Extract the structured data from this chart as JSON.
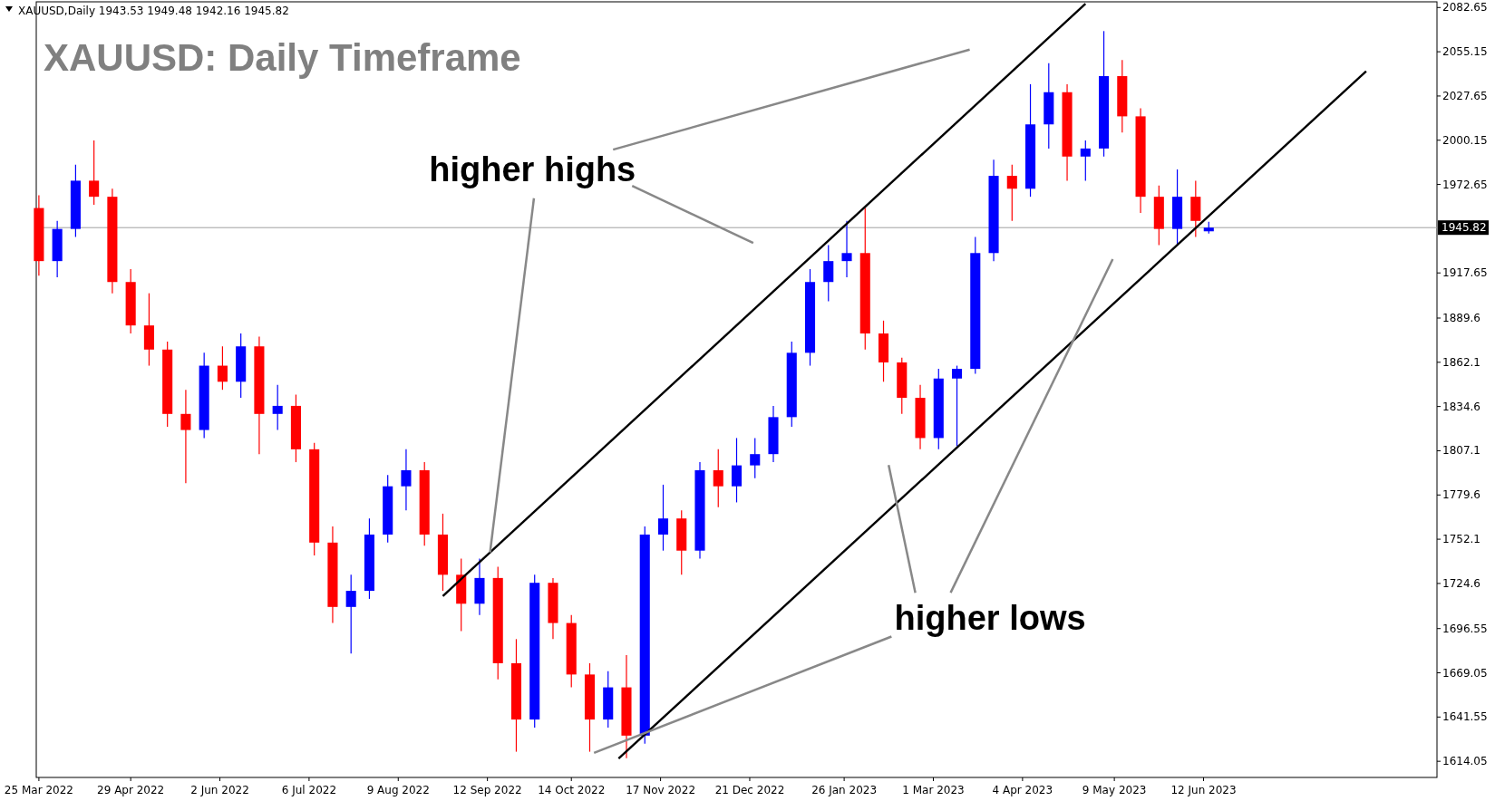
{
  "chart_data": {
    "type": "candlestick",
    "title": "XAUUSD: Daily Timeframe",
    "x": [
      "2022-03-25",
      "2022-04-01",
      "2022-04-08",
      "2022-04-15",
      "2022-04-22",
      "2022-04-29",
      "2022-05-06",
      "2022-05-13",
      "2022-05-20",
      "2022-05-27",
      "2022-06-03",
      "2022-06-10",
      "2022-06-17",
      "2022-06-24",
      "2022-07-01",
      "2022-07-08",
      "2022-07-15",
      "2022-07-22",
      "2022-07-29",
      "2022-08-05",
      "2022-08-12",
      "2022-08-19",
      "2022-08-26",
      "2022-09-02",
      "2022-09-09",
      "2022-09-16",
      "2022-09-23",
      "2022-09-30",
      "2022-10-07",
      "2022-10-14",
      "2022-10-21",
      "2022-10-28",
      "2022-11-04",
      "2022-11-11",
      "2022-11-18",
      "2022-11-25",
      "2022-12-02",
      "2022-12-09",
      "2022-12-16",
      "2022-12-23",
      "2022-12-30",
      "2023-01-06",
      "2023-01-13",
      "2023-01-20",
      "2023-01-27",
      "2023-02-03",
      "2023-02-10",
      "2023-02-17",
      "2023-02-24",
      "2023-03-03",
      "2023-03-10",
      "2023-03-17",
      "2023-03-24",
      "2023-03-31",
      "2023-04-07",
      "2023-04-14",
      "2023-04-21",
      "2023-04-28",
      "2023-05-05",
      "2023-05-12",
      "2023-05-19",
      "2023-05-26",
      "2023-06-02",
      "2023-06-09",
      "2023-06-14"
    ],
    "ohlc": [
      [
        1958,
        1966,
        1916,
        1925
      ],
      [
        1925,
        1950,
        1915,
        1945
      ],
      [
        1945,
        1985,
        1940,
        1975
      ],
      [
        1975,
        2000,
        1960,
        1965
      ],
      [
        1965,
        1970,
        1905,
        1912
      ],
      [
        1912,
        1920,
        1880,
        1885
      ],
      [
        1885,
        1905,
        1860,
        1870
      ],
      [
        1870,
        1875,
        1822,
        1830
      ],
      [
        1830,
        1845,
        1787,
        1820
      ],
      [
        1820,
        1868,
        1815,
        1860
      ],
      [
        1860,
        1872,
        1845,
        1850
      ],
      [
        1850,
        1880,
        1840,
        1872
      ],
      [
        1872,
        1878,
        1805,
        1830
      ],
      [
        1830,
        1848,
        1820,
        1835
      ],
      [
        1835,
        1842,
        1800,
        1808
      ],
      [
        1808,
        1812,
        1742,
        1750
      ],
      [
        1750,
        1760,
        1700,
        1710
      ],
      [
        1710,
        1730,
        1681,
        1720
      ],
      [
        1720,
        1765,
        1715,
        1755
      ],
      [
        1755,
        1792,
        1750,
        1785
      ],
      [
        1785,
        1808,
        1770,
        1795
      ],
      [
        1795,
        1800,
        1748,
        1755
      ],
      [
        1755,
        1768,
        1720,
        1730
      ],
      [
        1730,
        1740,
        1695,
        1712
      ],
      [
        1712,
        1740,
        1705,
        1728
      ],
      [
        1728,
        1735,
        1665,
        1675
      ],
      [
        1675,
        1690,
        1620,
        1640
      ],
      [
        1640,
        1730,
        1635,
        1725
      ],
      [
        1725,
        1728,
        1690,
        1700
      ],
      [
        1700,
        1705,
        1660,
        1668
      ],
      [
        1668,
        1675,
        1620,
        1640
      ],
      [
        1640,
        1670,
        1635,
        1660
      ],
      [
        1660,
        1680,
        1616,
        1630
      ],
      [
        1630,
        1760,
        1625,
        1755
      ],
      [
        1755,
        1786,
        1745,
        1765
      ],
      [
        1765,
        1770,
        1730,
        1745
      ],
      [
        1745,
        1800,
        1740,
        1795
      ],
      [
        1795,
        1808,
        1772,
        1785
      ],
      [
        1785,
        1815,
        1775,
        1798
      ],
      [
        1798,
        1815,
        1790,
        1805
      ],
      [
        1805,
        1835,
        1800,
        1828
      ],
      [
        1828,
        1875,
        1822,
        1868
      ],
      [
        1868,
        1920,
        1860,
        1912
      ],
      [
        1912,
        1935,
        1900,
        1925
      ],
      [
        1925,
        1950,
        1915,
        1930
      ],
      [
        1930,
        1958,
        1870,
        1880
      ],
      [
        1880,
        1888,
        1850,
        1862
      ],
      [
        1862,
        1865,
        1830,
        1840
      ],
      [
        1840,
        1848,
        1808,
        1815
      ],
      [
        1815,
        1858,
        1808,
        1852
      ],
      [
        1852,
        1860,
        1810,
        1858
      ],
      [
        1858,
        1940,
        1855,
        1930
      ],
      [
        1930,
        1988,
        1925,
        1978
      ],
      [
        1978,
        1985,
        1950,
        1970
      ],
      [
        1970,
        2035,
        1965,
        2010
      ],
      [
        2010,
        2048,
        1995,
        2030
      ],
      [
        2030,
        2035,
        1975,
        1990
      ],
      [
        1990,
        2000,
        1975,
        1995
      ],
      [
        1995,
        2068,
        1990,
        2040
      ],
      [
        2040,
        2050,
        2005,
        2015
      ],
      [
        2015,
        2020,
        1955,
        1965
      ],
      [
        1965,
        1972,
        1935,
        1945
      ],
      [
        1945,
        1982,
        1935,
        1965
      ],
      [
        1965,
        1975,
        1940,
        1950
      ],
      [
        1943.53,
        1949.48,
        1942.16,
        1945.82
      ]
    ],
    "colors": [
      "#ff0000",
      "#0000ff",
      "#0000ff",
      "#ff0000",
      "#ff0000",
      "#ff0000",
      "#ff0000",
      "#ff0000",
      "#ff0000",
      "#0000ff",
      "#ff0000",
      "#0000ff",
      "#ff0000",
      "#0000ff",
      "#ff0000",
      "#ff0000",
      "#ff0000",
      "#0000ff",
      "#0000ff",
      "#0000ff",
      "#0000ff",
      "#ff0000",
      "#ff0000",
      "#ff0000",
      "#0000ff",
      "#ff0000",
      "#ff0000",
      "#0000ff",
      "#ff0000",
      "#ff0000",
      "#ff0000",
      "#0000ff",
      "#ff0000",
      "#0000ff",
      "#0000ff",
      "#ff0000",
      "#0000ff",
      "#ff0000",
      "#0000ff",
      "#0000ff",
      "#0000ff",
      "#0000ff",
      "#0000ff",
      "#0000ff",
      "#0000ff",
      "#ff0000",
      "#ff0000",
      "#ff0000",
      "#ff0000",
      "#0000ff",
      "#0000ff",
      "#0000ff",
      "#0000ff",
      "#ff0000",
      "#0000ff",
      "#0000ff",
      "#ff0000",
      "#0000ff",
      "#0000ff",
      "#ff0000",
      "#ff0000",
      "#ff0000",
      "#0000ff",
      "#ff0000",
      "#0000ff"
    ],
    "series": [
      {
        "type": "line",
        "color": "#000000",
        "x": [
          "2022-08-26",
          "2023-04-28"
        ],
        "values": [
          1716.8,
          2085
        ]
      },
      {
        "type": "line",
        "color": "#000000",
        "x": [
          "2022-11-01",
          "2023-08-13"
        ],
        "values": [
          1615.7,
          2043
        ]
      }
    ],
    "ref_lines": [
      {
        "axis": "y",
        "value": 1945.82,
        "label": "1945.82",
        "color": "#a0a0a0"
      }
    ],
    "annotations": [
      "XAUUSD,Daily  1943.53 1949.48 1942.16 1945.82",
      {
        "text": "higher highs",
        "x": "2022-09-13",
        "y": 1743.9
      },
      "higher lows"
    ],
    "xlim": [
      "2022-03-24",
      "2023-09-09"
    ],
    "xticks": [
      {
        "value": "2022-03-25",
        "label": "25 Mar 2022"
      },
      {
        "value": "2022-04-29",
        "label": "29 Apr 2022"
      },
      {
        "value": "2022-06-02",
        "label": "2 Jun 2022"
      },
      {
        "value": "2022-07-06",
        "label": "6 Jul 2022"
      },
      {
        "value": "2022-08-09",
        "label": "9 Aug 2022"
      },
      {
        "value": "2022-09-12",
        "label": "12 Sep 2022"
      },
      {
        "value": "2022-10-14",
        "label": "14 Oct 2022"
      },
      {
        "value": "2022-11-17",
        "label": "17 Nov 2022"
      },
      {
        "value": "2022-12-21",
        "label": "21 Dec 2022"
      },
      {
        "value": "2023-01-26",
        "label": "26 Jan 2023"
      },
      {
        "value": "2023-03-01",
        "label": "1 Mar 2023"
      },
      {
        "value": "2023-04-04",
        "label": "4 Apr 2023"
      },
      {
        "value": "2023-05-09",
        "label": "9 May 2023"
      },
      {
        "value": "2023-06-12",
        "label": "12 Jun 2023"
      }
    ],
    "ylim": [
      1604,
      2086.2
    ],
    "yticks": [
      1614.05,
      1641.55,
      1669.05,
      1696.55,
      1724.6,
      1752.1,
      1779.6,
      1807.1,
      1834.6,
      1862.1,
      1889.6,
      1917.65,
      1972.65,
      2000.15,
      2027.65,
      2055.15,
      2082.65
    ],
    "grid": false
  }
}
